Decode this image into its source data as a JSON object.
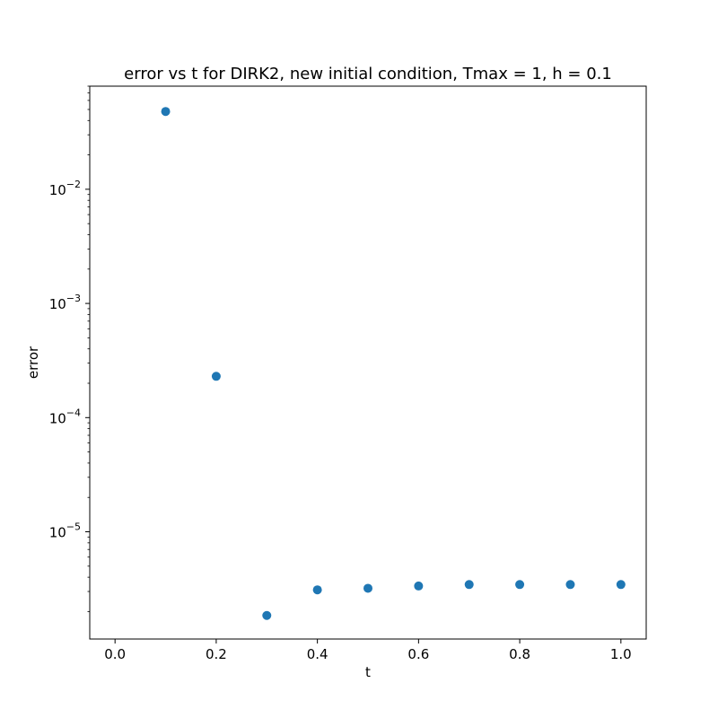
{
  "chart_data": {
    "type": "scatter",
    "title": "error vs t for DIRK2, new initial condition, Tmax = 1, h = 0.1",
    "xlabel": "t",
    "ylabel": "error",
    "x_ticks": [
      0.0,
      0.2,
      0.4,
      0.6,
      0.8,
      1.0
    ],
    "x_tick_labels": [
      "0.0",
      "0.2",
      "0.4",
      "0.6",
      "0.8",
      "1.0"
    ],
    "y_scale": "log",
    "y_ticks": [
      1e-05,
      0.0001,
      0.001,
      0.01
    ],
    "y_tick_labels": [
      {
        "base": "10",
        "exp": "−5"
      },
      {
        "base": "10",
        "exp": "−4"
      },
      {
        "base": "10",
        "exp": "−3"
      },
      {
        "base": "10",
        "exp": "−2"
      }
    ],
    "xlim": [
      -0.05,
      1.05
    ],
    "ylim": [
      1.15e-06,
      0.08
    ],
    "grid": false,
    "series": [
      {
        "color": "#1f77b4",
        "x": [
          0.1,
          0.2,
          0.3,
          0.4,
          0.5,
          0.6,
          0.7,
          0.8,
          0.9,
          1.0
        ],
        "y": [
          0.048,
          0.00023,
          1.85e-06,
          3.1e-06,
          3.2e-06,
          3.35e-06,
          3.45e-06,
          3.45e-06,
          3.45e-06,
          3.45e-06
        ]
      }
    ]
  }
}
